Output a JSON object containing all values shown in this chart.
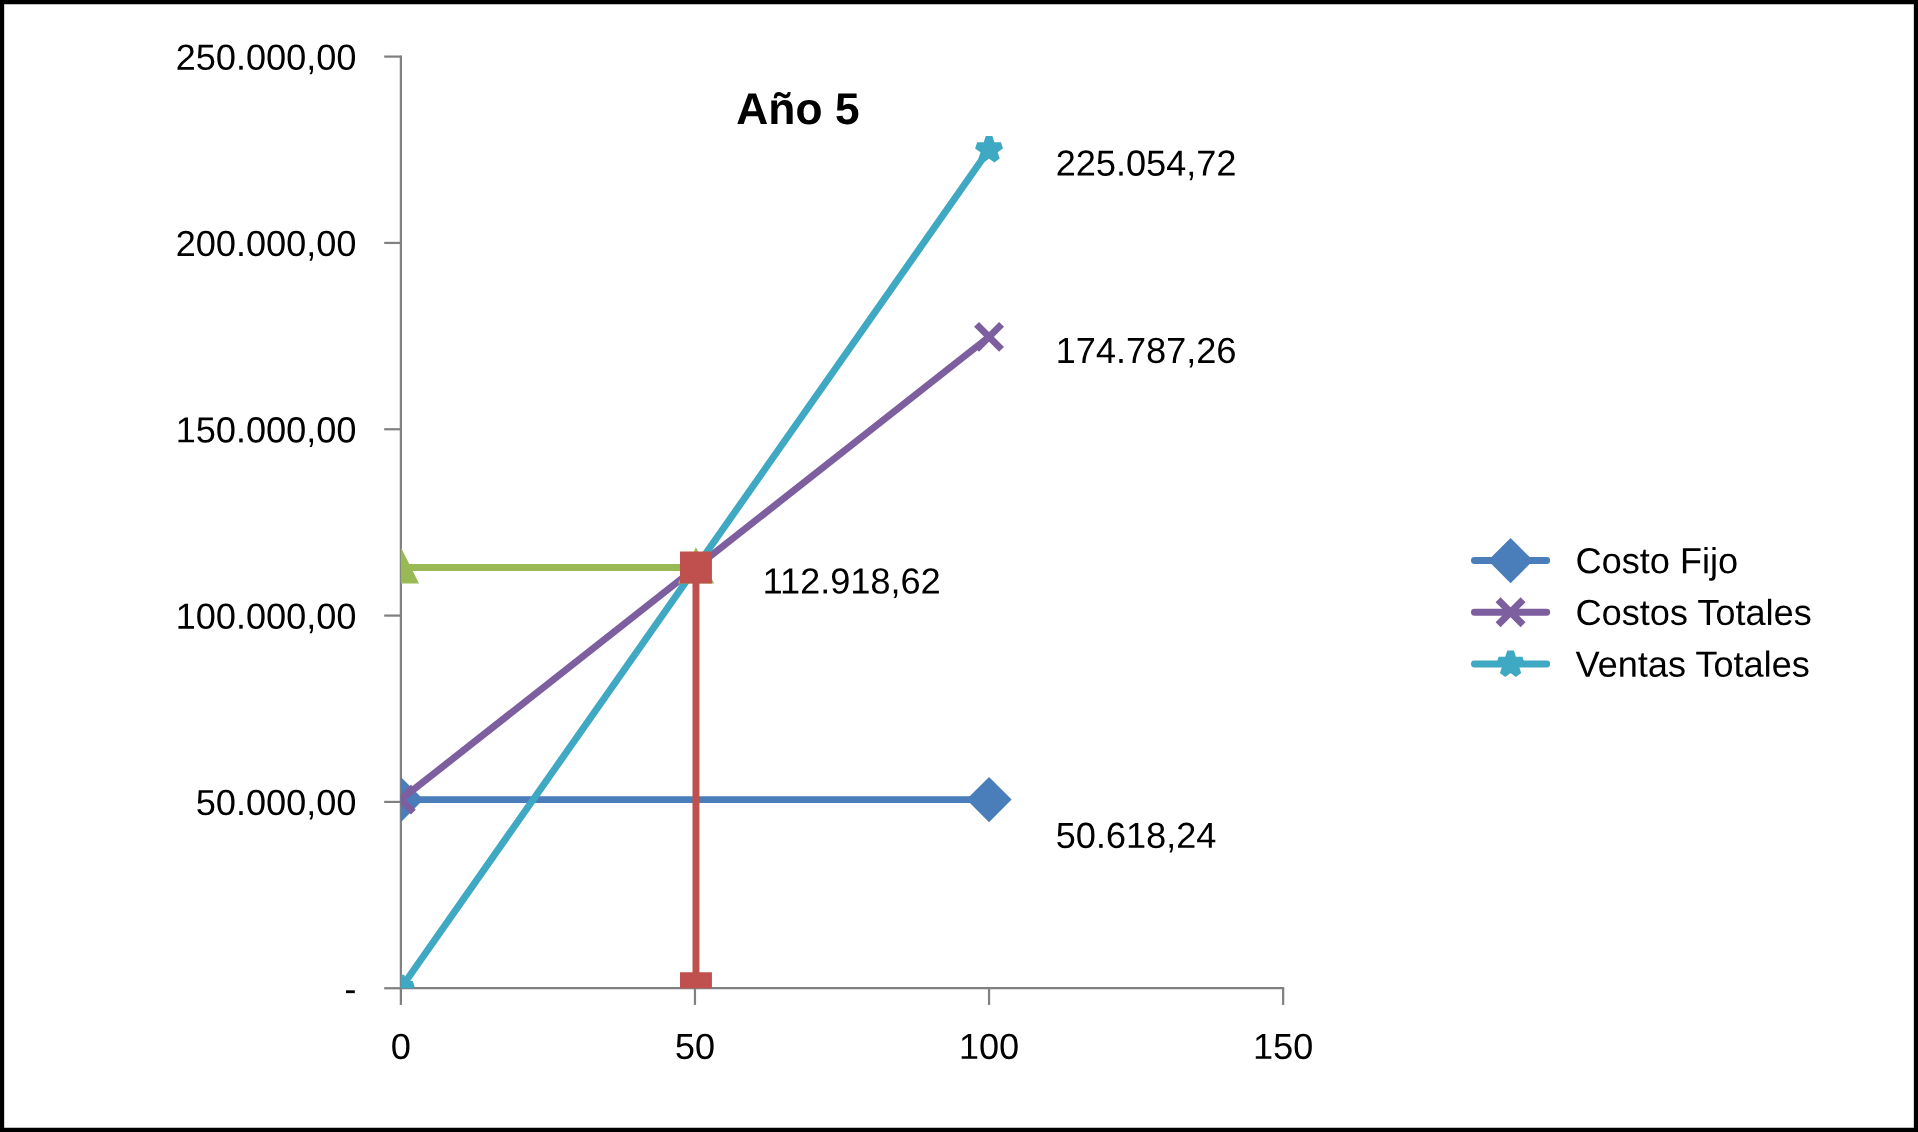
{
  "chart_data": {
    "type": "line",
    "title": "Año 5",
    "series": [
      {
        "name": "Costo Fijo",
        "color": "#4a7ebb",
        "marker": "diamond",
        "x": [
          0,
          100
        ],
        "values": [
          50618.24,
          50618.24
        ],
        "value_labels": [
          null,
          "50.618,24"
        ]
      },
      {
        "name": "Costos Totales",
        "color": "#7d5fa0",
        "marker": "cross",
        "x": [
          0,
          100
        ],
        "values": [
          50618.24,
          174787.26
        ],
        "value_labels": [
          null,
          "174.787,26"
        ]
      },
      {
        "name": "Ventas Totales",
        "color": "#3fa9c4",
        "marker": "star",
        "x": [
          0,
          100
        ],
        "values": [
          0,
          225054.72
        ],
        "value_labels": [
          null,
          "225.054,72"
        ]
      },
      {
        "color": "#98b954",
        "marker": "triangle",
        "x": [
          0,
          50.17
        ],
        "values": [
          112918.62,
          112918.62
        ],
        "value_labels": [
          null,
          "112.918,62"
        ]
      },
      {
        "color": "#c0504d",
        "marker": "square",
        "x": [
          50.17,
          50.17
        ],
        "values": [
          0,
          112918.62
        ]
      }
    ],
    "xlim": [
      0,
      150
    ],
    "xticks": [
      0,
      50,
      100,
      150
    ],
    "ylim": [
      0,
      250000
    ],
    "yticks": [
      {
        "value": 0,
        "label": "-"
      },
      {
        "value": 50000,
        "label": "50.000,00"
      },
      {
        "value": 100000,
        "label": "100.000,00"
      },
      {
        "value": 150000,
        "label": "150.000,00"
      },
      {
        "value": 200000,
        "label": "200.000,00"
      },
      {
        "value": 250000,
        "label": "250.000,00"
      }
    ],
    "grid": false,
    "legend": "right",
    "line_style": "solid"
  }
}
